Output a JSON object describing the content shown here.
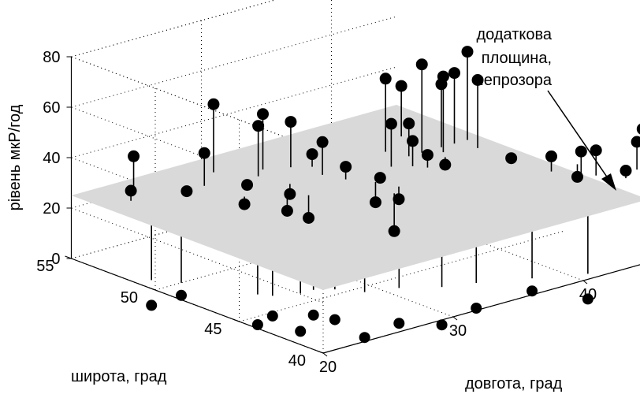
{
  "chart_data": {
    "type": "scatter",
    "title": "",
    "xlabel": "довгота, град",
    "ylabel": "широта, град",
    "zlabel": "рівень мкР/год",
    "xlim": [
      20,
      45
    ],
    "ylim": [
      40,
      55
    ],
    "zlim": [
      0,
      80
    ],
    "x_ticks": [
      20,
      30,
      40
    ],
    "y_ticks": [
      40,
      45,
      50,
      55
    ],
    "z_ticks": [
      0,
      20,
      40,
      60,
      80
    ],
    "grid": true,
    "plane": {
      "level": 25,
      "color": "#d9d9d9"
    },
    "annotation": {
      "lines": [
        "додаткова",
        "площина,",
        "непрозора"
      ]
    },
    "points_above": [
      [
        22,
        53,
        29
      ],
      [
        23.5,
        54,
        38
      ],
      [
        25,
        52,
        27
      ],
      [
        27,
        52.5,
        38
      ],
      [
        27.5,
        50.5,
        22
      ],
      [
        29,
        53.5,
        52
      ],
      [
        29,
        51.5,
        25
      ],
      [
        30.5,
        52,
        45
      ],
      [
        29.5,
        49.5,
        19
      ],
      [
        30.5,
        49,
        16
      ],
      [
        31,
        50.5,
        21
      ],
      [
        31.5,
        52.5,
        47
      ],
      [
        33,
        52,
        43
      ],
      [
        33.5,
        50.5,
        38
      ],
      [
        34,
        49.5,
        30
      ],
      [
        34,
        51.5,
        30
      ],
      [
        35,
        48.5,
        17
      ],
      [
        34.5,
        47,
        10
      ],
      [
        35.5,
        47.5,
        20
      ],
      [
        36,
        49,
        24
      ],
      [
        37.5,
        49.5,
        42
      ],
      [
        38.5,
        49,
        35
      ],
      [
        39,
        48.5,
        30
      ],
      [
        39,
        51,
        54
      ],
      [
        39.5,
        50,
        38
      ],
      [
        40.5,
        50,
        60
      ],
      [
        41,
        49,
        22
      ],
      [
        41.5,
        49.5,
        55
      ],
      [
        42,
        50,
        50
      ],
      [
        41.5,
        52,
        45
      ],
      [
        43,
        50,
        53
      ],
      [
        43.5,
        49,
        52
      ],
      [
        44,
        50,
        60
      ],
      [
        43.5,
        47,
        26
      ],
      [
        44,
        45,
        31
      ],
      [
        45,
        44,
        34
      ],
      [
        45.5,
        43.5,
        35
      ],
      [
        46.5,
        42.5,
        28
      ],
      [
        46,
        45,
        20
      ],
      [
        46.5,
        41.5,
        47
      ],
      [
        48,
        43,
        36
      ],
      [
        48.5,
        41,
        45
      ],
      [
        49,
        42,
        31
      ],
      [
        47.5,
        40.5,
        38
      ],
      [
        49.5,
        40,
        24
      ],
      [
        50,
        41.5,
        47
      ],
      [
        51.5,
        39.5,
        32
      ],
      [
        52,
        40,
        27
      ],
      [
        49,
        39,
        22
      ],
      [
        50.5,
        38.5,
        25
      ],
      [
        52.5,
        38.5,
        30
      ],
      [
        53.5,
        38.5,
        29
      ]
    ],
    "points_below": [
      [
        21,
        51,
        -10
      ],
      [
        22,
        50,
        -5
      ],
      [
        24,
        47,
        -12
      ],
      [
        24.5,
        46.5,
        -8
      ],
      [
        26,
        46,
        -15
      ],
      [
        27,
        46,
        -10
      ],
      [
        28,
        45.5,
        -12
      ],
      [
        29,
        44.5,
        -18
      ],
      [
        31,
        44,
        -14
      ],
      [
        33,
        43,
        -15
      ],
      [
        35,
        42.5,
        -10
      ],
      [
        38,
        41.5,
        -5
      ],
      [
        41,
        40.5,
        -10
      ],
      [
        44,
        39,
        -7
      ],
      [
        47,
        38.5,
        -4
      ],
      [
        49,
        37,
        -3
      ],
      [
        51,
        37,
        -6
      ],
      [
        52,
        37.5,
        -9
      ],
      [
        53,
        38,
        -2
      ],
      [
        47,
        36.5,
        -20
      ]
    ]
  }
}
